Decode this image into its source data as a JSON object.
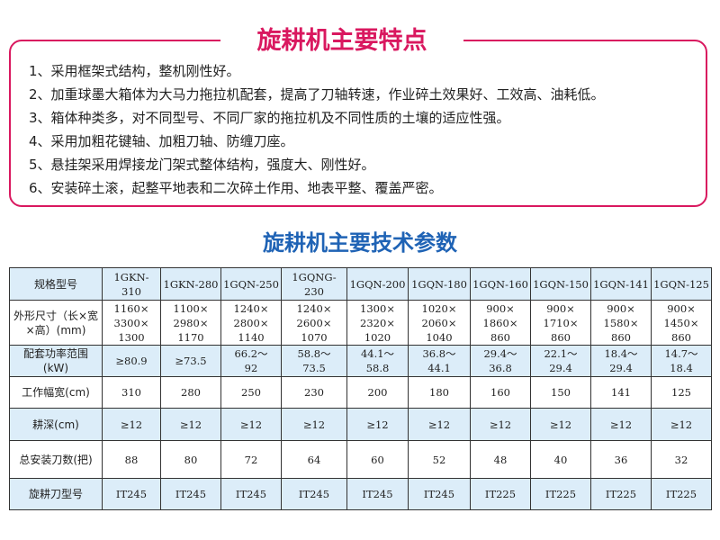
{
  "features": {
    "title": "旋耕机主要特点",
    "items": [
      "1、采用框架式结构，整机刚性好。",
      "2、加重球墨大箱体为大马力拖拉机配套，提高了刀轴转速，作业碎土效果好、工效高、油耗低。",
      "3、箱体种类多，对不同型号、不同厂家的拖拉机及不同性质的土壤的适应性强。",
      "4、采用加粗花键轴、加粗刀轴、防缠刀座。",
      "5、悬挂架采用焊接龙门架式整体结构，强度大、刚性好。",
      "6、安装碎土滚，起整平地表和二次碎土作用、地表平整、覆盖严密。"
    ]
  },
  "specs": {
    "title": "旋耕机主要技术参数",
    "rows": [
      {
        "label": "规格型号",
        "values": [
          "1GKN-310",
          "1GKN-280",
          "1GQN-250",
          "1GQNG-230",
          "1GQN-200",
          "1GQN-180",
          "1GQN-160",
          "1GQN-150",
          "1GQN-141",
          "1GQN-125"
        ]
      },
      {
        "label": "外形尺寸（长×宽×高）(mm)",
        "values": [
          "1160×3300×1300",
          "1100×2980×1170",
          "1240×2800×1140",
          "1240×2600×1070",
          "1300×2320×1020",
          "1020×2060×1040",
          "900×1860×860",
          "900×1710×860",
          "900×1580×860",
          "900×1450×860"
        ]
      },
      {
        "label": "配套功率范围(kW)",
        "values": [
          "≥80.9",
          "≥73.5",
          "66.2～92",
          "58.8～73.5",
          "44.1～58.8",
          "36.8～44.1",
          "29.4～36.8",
          "22.1～29.4",
          "18.4～29.4",
          "14.7～18.4"
        ]
      },
      {
        "label": "工作幅宽(cm)",
        "values": [
          "310",
          "280",
          "250",
          "230",
          "200",
          "180",
          "160",
          "150",
          "141",
          "125"
        ]
      },
      {
        "label": "耕深(cm)",
        "values": [
          "≥12",
          "≥12",
          "≥12",
          "≥12",
          "≥12",
          "≥12",
          "≥12",
          "≥12",
          "≥12",
          "≥12"
        ]
      },
      {
        "label": "总安装刀数(把)",
        "values": [
          "88",
          "80",
          "72",
          "64",
          "60",
          "52",
          "48",
          "40",
          "36",
          "32"
        ]
      },
      {
        "label": "旋耕刀型号",
        "values": [
          "IT245",
          "IT245",
          "IT245",
          "IT245",
          "IT245",
          "IT245",
          "IT225",
          "IT225",
          "IT225",
          "IT225"
        ]
      }
    ]
  },
  "colors": {
    "accent_pink": "#d9185f",
    "title_blue": "#1f63b5",
    "row_blue": "#dcedf9"
  }
}
